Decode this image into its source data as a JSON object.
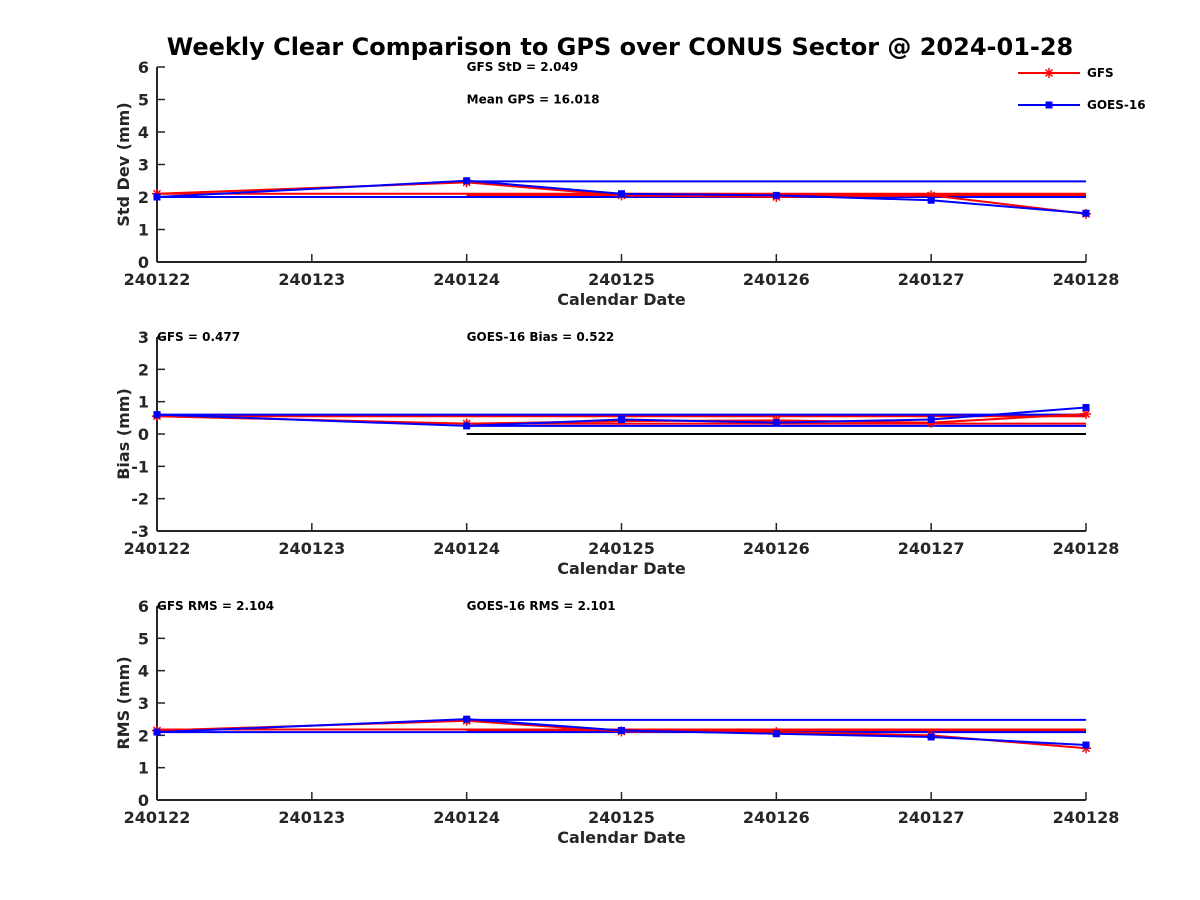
{
  "title": "Weekly Clear Comparison to GPS over CONUS Sector @ 2024-01-28",
  "legend": {
    "placement": "top-right",
    "entries": [
      {
        "label": "GFS",
        "color": "#ff0000",
        "marker": "asterisk"
      },
      {
        "label": "GOES-16",
        "color": "#0000ff",
        "marker": "square"
      }
    ]
  },
  "chart_data": [
    {
      "type": "line",
      "xlabel": "Calendar Date",
      "ylabel": "Std Dev (mm)",
      "ylim": [
        0,
        6
      ],
      "yticks": [
        "0",
        "1",
        "2",
        "3",
        "4",
        "5",
        "6"
      ],
      "categories": [
        "240122",
        "240123",
        "240124",
        "240125",
        "240126",
        "240127",
        "240128"
      ],
      "annotations": [
        {
          "text": "GFS StD = 2.049",
          "x": 2,
          "y": 6
        },
        {
          "text": "Mean GPS = 16.018",
          "x": 2,
          "y": 5
        }
      ],
      "series": [
        {
          "name": "GFS",
          "color": "#ff0000",
          "marker": "asterisk",
          "points": [
            [
              0,
              2.1
            ],
            [
              2,
              2.45
            ],
            [
              3,
              2.05
            ],
            [
              4,
              2.0
            ],
            [
              5,
              2.05
            ],
            [
              6,
              1.48
            ]
          ]
        },
        {
          "name": "GOES-16",
          "color": "#0000ff",
          "marker": "square",
          "points": [
            [
              0,
              2.0
            ],
            [
              2,
              2.5
            ],
            [
              3,
              2.1
            ],
            [
              4,
              2.05
            ],
            [
              5,
              1.9
            ],
            [
              6,
              1.5
            ]
          ]
        }
      ],
      "hlines": [
        {
          "y": 2.1,
          "x0": 0,
          "x1": 6,
          "color": "#ff0000"
        },
        {
          "y": 2.05,
          "x0": 2,
          "x1": 6,
          "color": "#ff0000"
        },
        {
          "y": 2.0,
          "x0": 0,
          "x1": 6,
          "color": "#0000ff"
        },
        {
          "y": 2.48,
          "x0": 2,
          "x1": 6,
          "color": "#0000ff"
        }
      ]
    },
    {
      "type": "line",
      "xlabel": "Calendar Date",
      "ylabel": "Bias (mm)",
      "ylim": [
        -3,
        3
      ],
      "yticks": [
        "-3",
        "-2",
        "-1",
        "0",
        "1",
        "2",
        "3"
      ],
      "categories": [
        "240122",
        "240123",
        "240124",
        "240125",
        "240126",
        "240127",
        "240128"
      ],
      "annotations": [
        {
          "text": "GFS = 0.477",
          "x": 0,
          "y": 3
        },
        {
          "text": "GOES-16 Bias  = 0.522",
          "x": 2,
          "y": 3
        }
      ],
      "series": [
        {
          "name": "GFS",
          "color": "#ff0000",
          "marker": "asterisk",
          "points": [
            [
              0,
              0.55
            ],
            [
              2,
              0.32
            ],
            [
              3,
              0.4
            ],
            [
              4,
              0.42
            ],
            [
              5,
              0.35
            ],
            [
              6,
              0.62
            ]
          ]
        },
        {
          "name": "GOES-16",
          "color": "#0000ff",
          "marker": "square",
          "points": [
            [
              0,
              0.6
            ],
            [
              2,
              0.25
            ],
            [
              3,
              0.45
            ],
            [
              4,
              0.35
            ],
            [
              5,
              0.45
            ],
            [
              6,
              0.82
            ]
          ]
        }
      ],
      "hlines": [
        {
          "y": 0.0,
          "x0": 2,
          "x1": 6,
          "color": "#000000"
        },
        {
          "y": 0.55,
          "x0": 0,
          "x1": 6,
          "color": "#ff0000"
        },
        {
          "y": 0.32,
          "x0": 2,
          "x1": 6,
          "color": "#ff0000"
        },
        {
          "y": 0.6,
          "x0": 0,
          "x1": 6,
          "color": "#0000ff"
        },
        {
          "y": 0.25,
          "x0": 2,
          "x1": 6,
          "color": "#0000ff"
        }
      ]
    },
    {
      "type": "line",
      "xlabel": "Calendar Date",
      "ylabel": "RMS (mm)",
      "ylim": [
        0,
        6
      ],
      "yticks": [
        "0",
        "1",
        "2",
        "3",
        "4",
        "5",
        "6"
      ],
      "categories": [
        "240122",
        "240123",
        "240124",
        "240125",
        "240126",
        "240127",
        "240128"
      ],
      "annotations": [
        {
          "text": "GFS RMS = 2.104",
          "x": 0,
          "y": 6
        },
        {
          "text": "GOES-16 RMS = 2.101",
          "x": 2,
          "y": 6
        }
      ],
      "series": [
        {
          "name": "GFS",
          "color": "#ff0000",
          "marker": "asterisk",
          "points": [
            [
              0,
              2.15
            ],
            [
              2,
              2.45
            ],
            [
              3,
              2.12
            ],
            [
              4,
              2.1
            ],
            [
              5,
              2.0
            ],
            [
              6,
              1.6
            ]
          ]
        },
        {
          "name": "GOES-16",
          "color": "#0000ff",
          "marker": "square",
          "points": [
            [
              0,
              2.1
            ],
            [
              2,
              2.5
            ],
            [
              3,
              2.15
            ],
            [
              4,
              2.05
            ],
            [
              5,
              1.95
            ],
            [
              6,
              1.7
            ]
          ]
        }
      ],
      "hlines": [
        {
          "y": 2.18,
          "x0": 0,
          "x1": 6,
          "color": "#ff0000"
        },
        {
          "y": 2.12,
          "x0": 2,
          "x1": 6,
          "color": "#ff0000"
        },
        {
          "y": 2.1,
          "x0": 0,
          "x1": 6,
          "color": "#0000ff"
        },
        {
          "y": 2.48,
          "x0": 2,
          "x1": 6,
          "color": "#0000ff"
        }
      ]
    }
  ]
}
